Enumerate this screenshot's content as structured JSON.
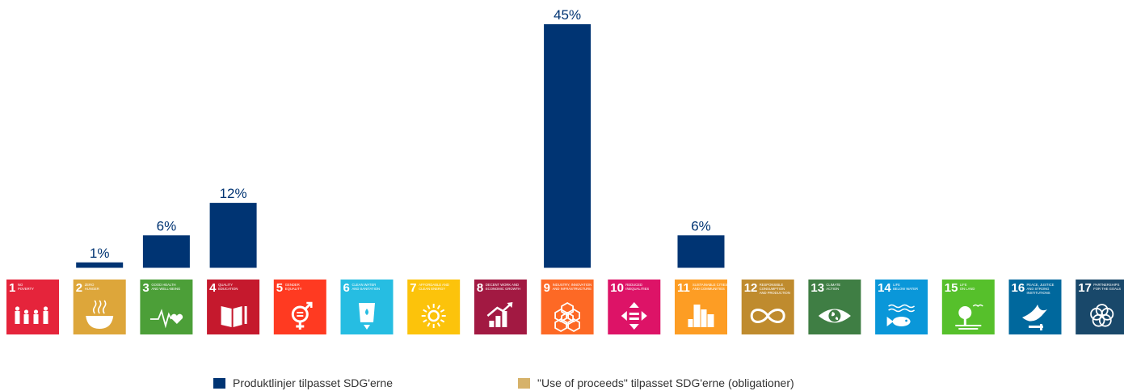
{
  "colors": {
    "product": "#003473",
    "proceeds": "#D6B26A",
    "sdg": [
      "#E5243B",
      "#DDA63A",
      "#4C9F38",
      "#C5192D",
      "#FF3A21",
      "#26BDE2",
      "#FCC30B",
      "#A21942",
      "#FD6925",
      "#DD1367",
      "#FD9D24",
      "#BF8B2E",
      "#3F7E44",
      "#0A97D9",
      "#56C02B",
      "#00689D",
      "#19486A"
    ]
  },
  "chart_data": {
    "type": "bar",
    "categories": [
      "1",
      "2",
      "3",
      "4",
      "5",
      "6",
      "7",
      "8",
      "9",
      "10",
      "11",
      "12",
      "13",
      "14",
      "15",
      "16",
      "17"
    ],
    "series": [
      {
        "name": "Produktlinjer tilpasset SDG'erne",
        "values": [
          null,
          1,
          6,
          12,
          null,
          null,
          null,
          null,
          45,
          null,
          6,
          null,
          null,
          null,
          null,
          null,
          null
        ],
        "labels": [
          "",
          "1%",
          "6%",
          "12%",
          "",
          "",
          "",
          "",
          "45%",
          "",
          "6%",
          "",
          "",
          "",
          "",
          "",
          ""
        ]
      },
      {
        "name": "\"Use of proceeds\" tilpasset SDG'erne (obligationer)",
        "values": [
          null,
          null,
          null,
          null,
          null,
          null,
          null,
          null,
          null,
          null,
          null,
          null,
          null,
          null,
          null,
          null,
          null
        ]
      }
    ],
    "ylim": [
      0,
      45
    ],
    "grid": false,
    "legend_position": "bottom"
  },
  "sdg_tiles": [
    {
      "num": "1",
      "lines": [
        "NO",
        "POVERTY"
      ],
      "icon": "family-icon"
    },
    {
      "num": "2",
      "lines": [
        "ZERO",
        "HUNGER"
      ],
      "icon": "bowl-icon"
    },
    {
      "num": "3",
      "lines": [
        "GOOD HEALTH",
        "AND WELL-BEING"
      ],
      "icon": "heartbeat-icon"
    },
    {
      "num": "4",
      "lines": [
        "QUALITY",
        "EDUCATION"
      ],
      "icon": "book-icon"
    },
    {
      "num": "5",
      "lines": [
        "GENDER",
        "EQUALITY"
      ],
      "icon": "gender-equality-icon"
    },
    {
      "num": "6",
      "lines": [
        "CLEAN WATER",
        "AND SANITATION"
      ],
      "icon": "water-glass-icon"
    },
    {
      "num": "7",
      "lines": [
        "AFFORDABLE AND",
        "CLEAN ENERGY"
      ],
      "icon": "sun-power-icon"
    },
    {
      "num": "8",
      "lines": [
        "DECENT WORK AND",
        "ECONOMIC GROWTH"
      ],
      "icon": "growth-chart-icon"
    },
    {
      "num": "9",
      "lines": [
        "INDUSTRY, INNOVATION",
        "AND INFRASTRUCTURE"
      ],
      "icon": "cubes-icon"
    },
    {
      "num": "10",
      "lines": [
        "REDUCED",
        "INEQUALITIES"
      ],
      "icon": "equal-arrows-icon"
    },
    {
      "num": "11",
      "lines": [
        "SUSTAINABLE CITIES",
        "AND COMMUNITIES"
      ],
      "icon": "city-icon"
    },
    {
      "num": "12",
      "lines": [
        "RESPONSIBLE",
        "CONSUMPTION",
        "AND PRODUCTION"
      ],
      "icon": "infinity-icon"
    },
    {
      "num": "13",
      "lines": [
        "CLIMATE",
        "ACTION"
      ],
      "icon": "eye-globe-icon"
    },
    {
      "num": "14",
      "lines": [
        "LIFE",
        "BELOW WATER"
      ],
      "icon": "fish-icon"
    },
    {
      "num": "15",
      "lines": [
        "LIFE",
        "ON LAND"
      ],
      "icon": "tree-icon"
    },
    {
      "num": "16",
      "lines": [
        "PEACE, JUSTICE",
        "AND STRONG",
        "INSTITUTIONS"
      ],
      "icon": "dove-icon"
    },
    {
      "num": "17",
      "lines": [
        "PARTNERSHIPS",
        "FOR THE GOALS"
      ],
      "icon": "flower-rings-icon"
    }
  ],
  "legend": {
    "product_label": "Produktlinjer tilpasset SDG'erne",
    "proceeds_label": "\"Use of proceeds\" tilpasset SDG'erne (obligationer)"
  }
}
